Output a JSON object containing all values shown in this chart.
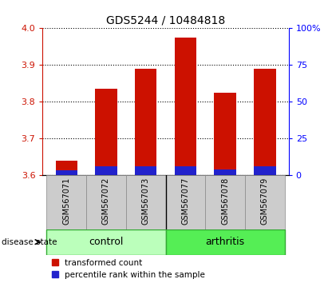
{
  "title": "GDS5244 / 10484818",
  "samples": [
    "GSM567071",
    "GSM567072",
    "GSM567073",
    "GSM567077",
    "GSM567078",
    "GSM567079"
  ],
  "groups": [
    "control",
    "control",
    "control",
    "arthritis",
    "arthritis",
    "arthritis"
  ],
  "red_heights": [
    3.64,
    3.835,
    3.89,
    3.975,
    3.825,
    3.89
  ],
  "blue_heights": [
    3.615,
    3.625,
    3.625,
    3.625,
    3.617,
    3.625
  ],
  "y_min": 3.6,
  "y_max": 4.0,
  "y_ticks_left": [
    3.6,
    3.7,
    3.8,
    3.9,
    4.0
  ],
  "y_ticks_right": [
    0,
    25,
    50,
    75,
    100
  ],
  "bar_width": 0.55,
  "red_color": "#CC1100",
  "blue_color": "#2222CC",
  "control_color": "#BBFFBB",
  "arthritis_color": "#55EE55",
  "sample_bg_color": "#CCCCCC",
  "group_label": "disease state",
  "legend_red": "transformed count",
  "legend_blue": "percentile rank within the sample",
  "title_fontsize": 10,
  "tick_fontsize": 8,
  "sample_fontsize": 7,
  "group_fontsize": 9,
  "legend_fontsize": 7.5
}
